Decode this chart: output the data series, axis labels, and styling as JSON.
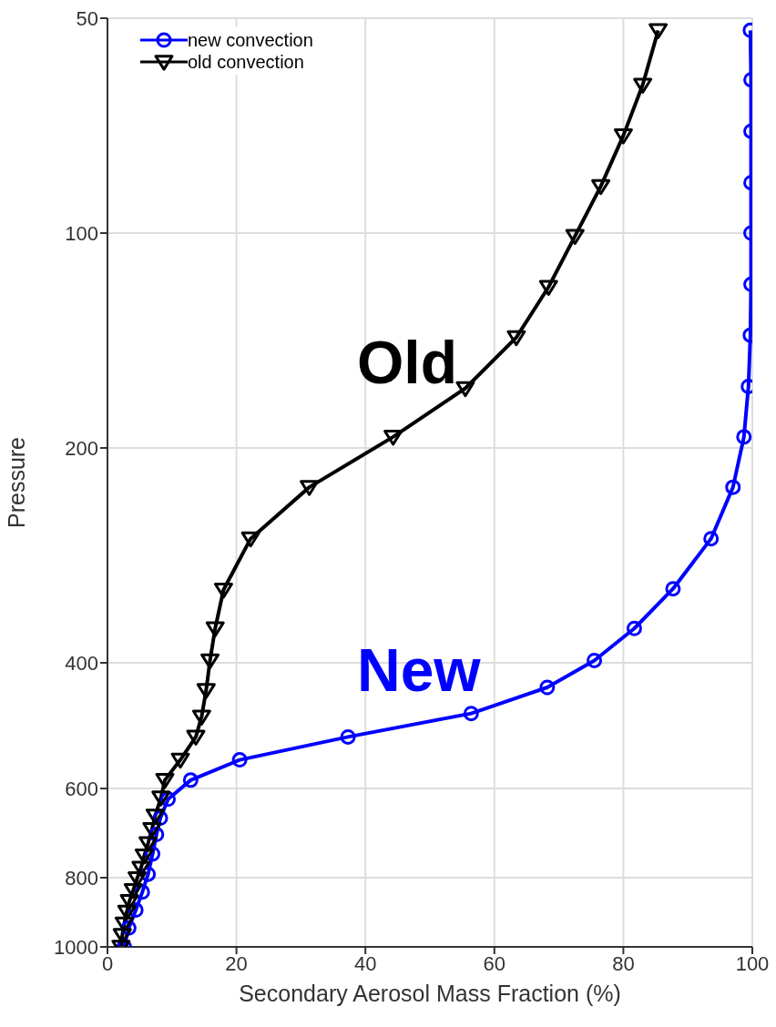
{
  "chart_data": {
    "type": "line",
    "xlabel": "Secondary Aerosol Mass Fraction (%)",
    "ylabel": "Pressure",
    "log": "y",
    "xlim": [
      0,
      100
    ],
    "xticks": [
      0,
      20,
      40,
      60,
      80,
      100
    ],
    "ylim": [
      1000,
      50
    ],
    "yticks": [
      50,
      100,
      200,
      400,
      600,
      800,
      1000
    ],
    "grid": true,
    "legend": "top left",
    "line_style": "solid",
    "series": [
      {
        "name": "new convection",
        "color": "#0000ff",
        "marker": "circle",
        "x": [
          99.7,
          99.8,
          99.8,
          99.8,
          99.8,
          99.8,
          99.7,
          99.4,
          98.7,
          97.0,
          93.6,
          87.7,
          81.7,
          75.5,
          68.2,
          56.4,
          37.3,
          20.5,
          12.9,
          9.4,
          8.2,
          7.6,
          7.0,
          6.3,
          5.4,
          4.4,
          3.3,
          2.6
        ],
        "values": [
          52,
          61,
          72,
          85,
          100,
          118,
          139,
          164,
          193,
          227,
          268,
          315,
          358,
          397,
          433,
          471,
          508,
          547,
          584,
          621,
          660,
          696,
          741,
          791,
          838,
          888,
          941,
          1000
        ]
      },
      {
        "name": "old convection",
        "color": "#000000",
        "marker": "triangle",
        "x": [
          85.4,
          83.0,
          80.0,
          76.5,
          72.5,
          68.4,
          63.4,
          55.5,
          44.3,
          31.3,
          22.2,
          18.0,
          16.7,
          15.9,
          15.3,
          14.6,
          13.7,
          11.3,
          8.9,
          8.3,
          7.4,
          6.9,
          6.3,
          5.7,
          5.2,
          4.6,
          4.0,
          3.4,
          3.0,
          2.6,
          2.3,
          2.1
        ],
        "values": [
          52,
          62,
          73,
          86,
          101,
          119,
          140,
          165,
          193,
          227,
          268,
          316,
          358,
          397,
          437,
          476,
          508,
          547,
          584,
          618,
          655,
          684,
          716,
          745,
          775,
          802,
          833,
          863,
          893,
          928,
          963,
          1000
        ]
      }
    ],
    "annotations": [
      "New",
      "Old"
    ]
  }
}
